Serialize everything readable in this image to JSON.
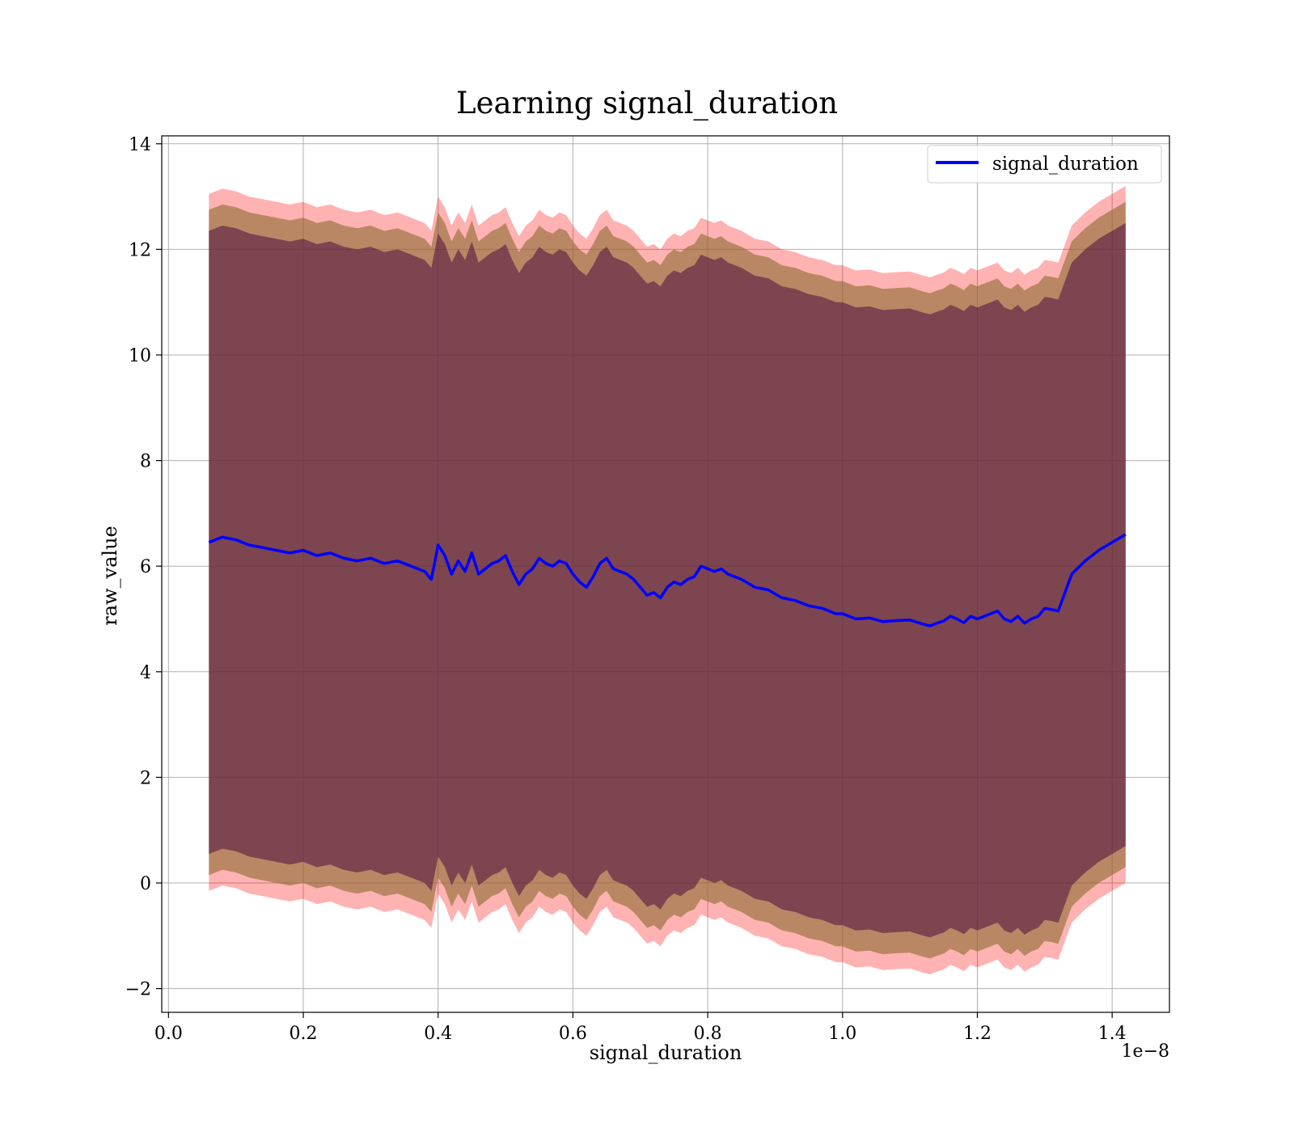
{
  "chart_data": {
    "type": "area",
    "title": "Learning signal_duration",
    "xlabel": "signal_duration",
    "ylabel": "raw_value",
    "x_offset_label": "1e−8",
    "xlim": [
      -0.01,
      1.485
    ],
    "ylim": [
      -2.45,
      14.15
    ],
    "x_ticks": [
      0.0,
      0.2,
      0.4,
      0.6,
      0.8,
      1.0,
      1.2,
      1.4
    ],
    "x_tick_labels": [
      "0.0",
      "0.2",
      "0.4",
      "0.6",
      "0.8",
      "1.0",
      "1.2",
      "1.4"
    ],
    "y_ticks": [
      -2,
      0,
      2,
      4,
      6,
      8,
      10,
      12,
      14
    ],
    "y_tick_labels": [
      "−2",
      "0",
      "2",
      "4",
      "6",
      "8",
      "10",
      "12",
      "14"
    ],
    "grid": true,
    "legend": {
      "position": "top-right",
      "entries": [
        "signal_duration"
      ]
    },
    "colors": {
      "line": "#0000ff",
      "band_outer": "#ff0000",
      "band_middle": "#8c6a30",
      "band_inner": "#4a0f40"
    },
    "series": [
      {
        "name": "signal_duration",
        "x": [
          0.06,
          0.08,
          0.1,
          0.12,
          0.14,
          0.16,
          0.18,
          0.2,
          0.22,
          0.24,
          0.26,
          0.28,
          0.3,
          0.32,
          0.34,
          0.36,
          0.38,
          0.39,
          0.4,
          0.41,
          0.42,
          0.43,
          0.44,
          0.45,
          0.46,
          0.47,
          0.48,
          0.49,
          0.5,
          0.51,
          0.52,
          0.53,
          0.54,
          0.55,
          0.56,
          0.57,
          0.58,
          0.59,
          0.6,
          0.61,
          0.62,
          0.63,
          0.64,
          0.65,
          0.66,
          0.67,
          0.68,
          0.69,
          0.7,
          0.71,
          0.72,
          0.73,
          0.74,
          0.75,
          0.76,
          0.77,
          0.78,
          0.79,
          0.8,
          0.81,
          0.82,
          0.83,
          0.85,
          0.87,
          0.89,
          0.91,
          0.93,
          0.95,
          0.97,
          0.99,
          1.0,
          1.02,
          1.04,
          1.06,
          1.08,
          1.1,
          1.12,
          1.13,
          1.14,
          1.15,
          1.16,
          1.17,
          1.18,
          1.19,
          1.2,
          1.21,
          1.22,
          1.23,
          1.24,
          1.25,
          1.26,
          1.27,
          1.28,
          1.29,
          1.3,
          1.31,
          1.32,
          1.34,
          1.36,
          1.38,
          1.4,
          1.42
        ],
        "mean": [
          6.45,
          6.55,
          6.5,
          6.4,
          6.35,
          6.3,
          6.25,
          6.3,
          6.2,
          6.25,
          6.15,
          6.1,
          6.15,
          6.05,
          6.1,
          6.0,
          5.9,
          5.75,
          6.4,
          6.2,
          5.85,
          6.1,
          5.9,
          6.25,
          5.85,
          5.95,
          6.05,
          6.1,
          6.2,
          5.9,
          5.65,
          5.85,
          5.95,
          6.15,
          6.05,
          6.0,
          6.1,
          6.05,
          5.85,
          5.7,
          5.6,
          5.8,
          6.05,
          6.15,
          5.95,
          5.9,
          5.85,
          5.75,
          5.6,
          5.45,
          5.5,
          5.4,
          5.6,
          5.7,
          5.65,
          5.75,
          5.8,
          6.0,
          5.95,
          5.9,
          5.95,
          5.85,
          5.75,
          5.6,
          5.55,
          5.4,
          5.35,
          5.25,
          5.2,
          5.1,
          5.1,
          5.0,
          5.02,
          4.95,
          4.97,
          4.98,
          4.9,
          4.87,
          4.92,
          4.96,
          5.05,
          5.0,
          4.93,
          5.05,
          5.0,
          5.05,
          5.1,
          5.15,
          5.0,
          4.95,
          5.05,
          4.92,
          5.0,
          5.05,
          5.2,
          5.18,
          5.15,
          5.85,
          6.1,
          6.3,
          6.45,
          6.6
        ],
        "band_outer_half_width": 6.6,
        "band_middle_half_width": 6.3,
        "band_inner_half_width": 5.9
      }
    ]
  }
}
